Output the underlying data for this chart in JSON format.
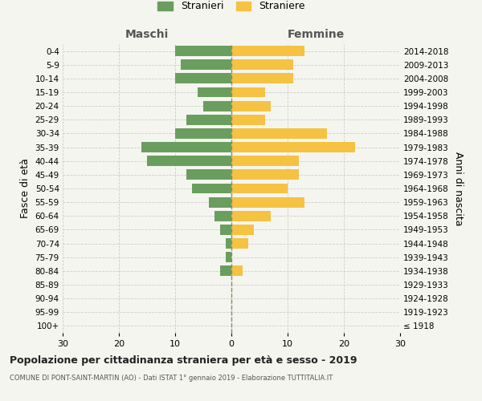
{
  "age_groups": [
    "100+",
    "95-99",
    "90-94",
    "85-89",
    "80-84",
    "75-79",
    "70-74",
    "65-69",
    "60-64",
    "55-59",
    "50-54",
    "45-49",
    "40-44",
    "35-39",
    "30-34",
    "25-29",
    "20-24",
    "15-19",
    "10-14",
    "5-9",
    "0-4"
  ],
  "birth_years": [
    "≤ 1918",
    "1919-1923",
    "1924-1928",
    "1929-1933",
    "1934-1938",
    "1939-1943",
    "1944-1948",
    "1949-1953",
    "1954-1958",
    "1959-1963",
    "1964-1968",
    "1969-1973",
    "1974-1978",
    "1979-1983",
    "1984-1988",
    "1989-1993",
    "1994-1998",
    "1999-2003",
    "2004-2008",
    "2009-2013",
    "2014-2018"
  ],
  "males": [
    0,
    0,
    0,
    0,
    2,
    1,
    1,
    2,
    3,
    4,
    7,
    8,
    15,
    16,
    10,
    8,
    5,
    6,
    10,
    9,
    10
  ],
  "females": [
    0,
    0,
    0,
    0,
    2,
    0,
    3,
    4,
    7,
    13,
    10,
    12,
    12,
    22,
    17,
    6,
    7,
    6,
    11,
    11,
    13
  ],
  "male_color": "#6a9e5e",
  "female_color": "#f5c242",
  "background_color": "#f5f5f0",
  "grid_color": "#cccccc",
  "center_line_color": "#8b8b6a",
  "title": "Popolazione per cittadinanza straniera per età e sesso - 2019",
  "subtitle": "COMUNE DI PONT-SAINT-MARTIN (AO) - Dati ISTAT 1° gennaio 2019 - Elaborazione TUTTITALIA.IT",
  "left_header": "Maschi",
  "right_header": "Femmine",
  "left_axis_label": "Fasce di età",
  "right_axis_label": "Anni di nascita",
  "legend_male": "Stranieri",
  "legend_female": "Straniere",
  "xlim": 30
}
